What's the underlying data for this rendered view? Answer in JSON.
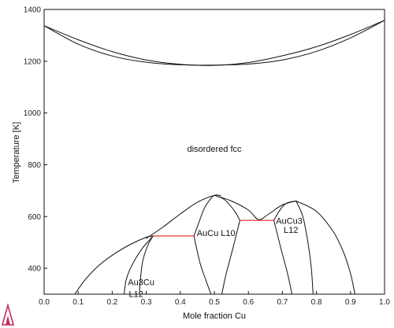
{
  "chart_data": {
    "type": "line",
    "xlabel": "Mole fraction Cu",
    "ylabel": "Temperature [K]",
    "xlim": [
      0.0,
      1.0
    ],
    "ylim": [
      300,
      1400
    ],
    "x_ticks": [
      "0.0",
      "0.1",
      "0.2",
      "0.3",
      "0.4",
      "0.5",
      "0.6",
      "0.7",
      "0.8",
      "0.9",
      "1.0"
    ],
    "y_ticks": [
      "400",
      "600",
      "800",
      "1000",
      "1200",
      "1400"
    ],
    "x_tick_values": [
      0.0,
      0.1,
      0.2,
      0.3,
      0.4,
      0.5,
      0.6,
      0.7,
      0.8,
      0.9,
      1.0
    ],
    "y_tick_values": [
      400,
      600,
      800,
      1000,
      1200,
      1400
    ],
    "grid": false,
    "regions": [
      {
        "label": "disordered fcc",
        "x": 0.5,
        "y": 850
      },
      {
        "label": "Au3Cu",
        "x": 0.285,
        "y": 335
      },
      {
        "label": "L12",
        "x": 0.27,
        "y": 290
      },
      {
        "label": "AuCu L10",
        "x": 0.505,
        "y": 525
      },
      {
        "label": "AuCu3",
        "x": 0.72,
        "y": 572
      },
      {
        "label": "L12",
        "x": 0.725,
        "y": 537
      }
    ],
    "boundary_color": "#111111",
    "tieline_color": "#e02020",
    "boundaries": [
      {
        "name": "liquidus",
        "points": [
          [
            0.0,
            1337
          ],
          [
            0.1,
            1283
          ],
          [
            0.2,
            1237
          ],
          [
            0.3,
            1205
          ],
          [
            0.4,
            1188
          ],
          [
            0.5,
            1184
          ],
          [
            0.6,
            1195
          ],
          [
            0.7,
            1221
          ],
          [
            0.8,
            1256
          ],
          [
            0.9,
            1303
          ],
          [
            1.0,
            1358
          ]
        ]
      },
      {
        "name": "solidus",
        "points": [
          [
            0.0,
            1337
          ],
          [
            0.1,
            1266
          ],
          [
            0.2,
            1220
          ],
          [
            0.3,
            1196
          ],
          [
            0.4,
            1186
          ],
          [
            0.5,
            1185
          ],
          [
            0.6,
            1189
          ],
          [
            0.7,
            1205
          ],
          [
            0.8,
            1238
          ],
          [
            0.9,
            1290
          ],
          [
            1.0,
            1358
          ]
        ]
      },
      {
        "name": "au3cu-outer",
        "points": [
          [
            0.09,
            300
          ],
          [
            0.12,
            355
          ],
          [
            0.16,
            410
          ],
          [
            0.2,
            450
          ],
          [
            0.25,
            490
          ],
          [
            0.3,
            520
          ],
          [
            0.32,
            525
          ]
        ]
      },
      {
        "name": "au3cu-inner",
        "points": [
          [
            0.235,
            300
          ],
          [
            0.24,
            350
          ],
          [
            0.25,
            390
          ],
          [
            0.27,
            440
          ],
          [
            0.29,
            480
          ],
          [
            0.31,
            510
          ],
          [
            0.32,
            525
          ]
        ]
      },
      {
        "name": "au3cu-right",
        "points": [
          [
            0.32,
            525
          ],
          [
            0.305,
            490
          ],
          [
            0.29,
            430
          ],
          [
            0.283,
            360
          ],
          [
            0.28,
            300
          ]
        ]
      },
      {
        "name": "aucu-left",
        "points": [
          [
            0.3,
            515
          ],
          [
            0.35,
            560
          ],
          [
            0.4,
            610
          ],
          [
            0.45,
            655
          ],
          [
            0.5,
            682
          ],
          [
            0.52,
            680
          ]
        ]
      },
      {
        "name": "aucu-inner-left",
        "points": [
          [
            0.44,
            525
          ],
          [
            0.45,
            560
          ],
          [
            0.47,
            630
          ],
          [
            0.49,
            670
          ],
          [
            0.5,
            682
          ]
        ]
      },
      {
        "name": "aucu-top-right",
        "points": [
          [
            0.5,
            682
          ],
          [
            0.53,
            665
          ],
          [
            0.56,
            620
          ],
          [
            0.575,
            585
          ]
        ]
      },
      {
        "name": "aucu-low-left",
        "points": [
          [
            0.44,
            525
          ],
          [
            0.458,
            420
          ],
          [
            0.475,
            355
          ],
          [
            0.49,
            300
          ]
        ]
      },
      {
        "name": "aucu-low-right",
        "points": [
          [
            0.575,
            585
          ],
          [
            0.555,
            480
          ],
          [
            0.535,
            380
          ],
          [
            0.522,
            300
          ]
        ]
      },
      {
        "name": "aucu-outer-right",
        "points": [
          [
            0.5,
            682
          ],
          [
            0.55,
            660
          ],
          [
            0.6,
            625
          ],
          [
            0.63,
            588
          ],
          [
            0.66,
            610
          ],
          [
            0.7,
            645
          ],
          [
            0.74,
            660
          ]
        ]
      },
      {
        "name": "aucu3-inner-left",
        "points": [
          [
            0.675,
            585
          ],
          [
            0.69,
            620
          ],
          [
            0.71,
            650
          ],
          [
            0.74,
            660
          ]
        ]
      },
      {
        "name": "aucu3-left-low",
        "points": [
          [
            0.675,
            585
          ],
          [
            0.695,
            480
          ],
          [
            0.715,
            380
          ],
          [
            0.728,
            300
          ]
        ]
      },
      {
        "name": "aucu3-right-inner",
        "points": [
          [
            0.74,
            660
          ],
          [
            0.76,
            600
          ],
          [
            0.775,
            500
          ],
          [
            0.785,
            400
          ],
          [
            0.79,
            300
          ]
        ]
      },
      {
        "name": "aucu3-right-outer",
        "points": [
          [
            0.74,
            660
          ],
          [
            0.8,
            620
          ],
          [
            0.85,
            540
          ],
          [
            0.88,
            460
          ],
          [
            0.9,
            380
          ],
          [
            0.913,
            300
          ]
        ]
      }
    ],
    "tielines": [
      {
        "x1": 0.32,
        "x2": 0.44,
        "y": 525
      },
      {
        "x1": 0.575,
        "x2": 0.675,
        "y": 585
      }
    ]
  }
}
